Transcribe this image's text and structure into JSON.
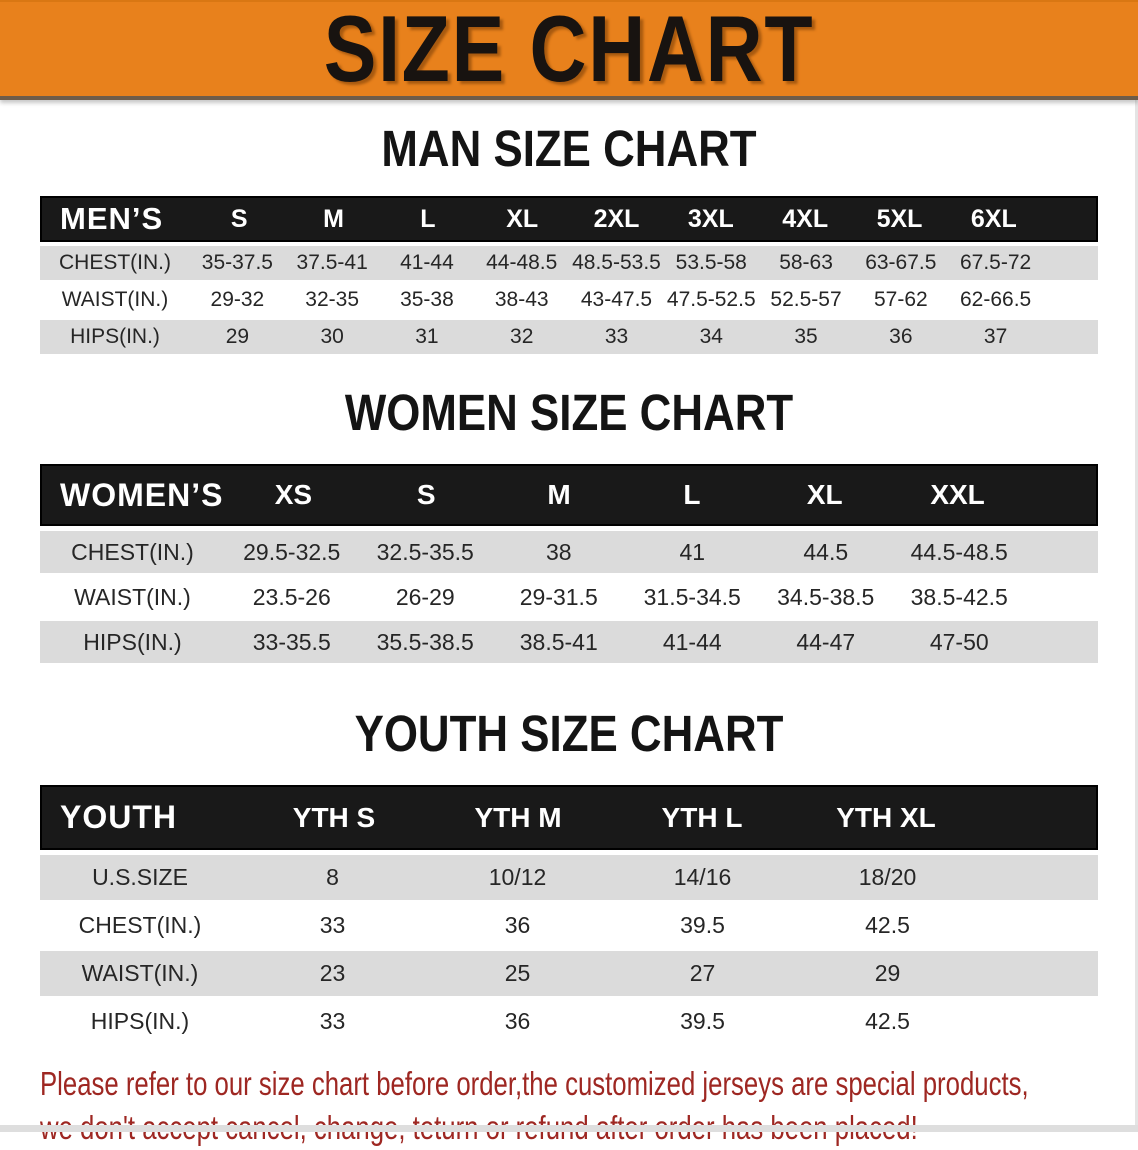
{
  "banner": {
    "title": "SIZE CHART"
  },
  "colors": {
    "banner_bg": "#E8811C",
    "header_band_bg": "#191919",
    "row_stripe_gray": "#DBDBDB",
    "footer_red": "#9E2722"
  },
  "sections": [
    {
      "heading": "MAN SIZE CHART",
      "table": {
        "name": "mens",
        "label": "MEN’S",
        "columns": [
          "S",
          "M",
          "L",
          "XL",
          "2XL",
          "3XL",
          "4XL",
          "5XL",
          "6XL"
        ],
        "rows": [
          {
            "label": "CHEST(IN.)",
            "values": [
              "35-37.5",
              "37.5-41",
              "41-44",
              "44-48.5",
              "48.5-53.5",
              "53.5-58",
              "58-63",
              "63-67.5",
              "67.5-72"
            ]
          },
          {
            "label": "WAIST(IN.)",
            "values": [
              "29-32",
              "32-35",
              "35-38",
              "38-43",
              "43-47.5",
              "47.5-52.5",
              "52.5-57",
              "57-62",
              "62-66.5"
            ]
          },
          {
            "label": "HIPS(IN.)",
            "values": [
              "29",
              "30",
              "31",
              "32",
              "33",
              "34",
              "35",
              "36",
              "37"
            ]
          }
        ]
      }
    },
    {
      "heading": "WOMEN SIZE CHART",
      "table": {
        "name": "womens",
        "label": "WOMEN’S",
        "columns": [
          "XS",
          "S",
          "M",
          "L",
          "XL",
          "XXL"
        ],
        "rows": [
          {
            "label": "CHEST(IN.)",
            "values": [
              "29.5-32.5",
              "32.5-35.5",
              "38",
              "41",
              "44.5",
              "44.5-48.5"
            ]
          },
          {
            "label": "WAIST(IN.)",
            "values": [
              "23.5-26",
              "26-29",
              "29-31.5",
              "31.5-34.5",
              "34.5-38.5",
              "38.5-42.5"
            ]
          },
          {
            "label": "HIPS(IN.)",
            "values": [
              "33-35.5",
              "35.5-38.5",
              "38.5-41",
              "41-44",
              "44-47",
              "47-50"
            ]
          }
        ]
      }
    },
    {
      "heading": "YOUTH SIZE CHART",
      "table": {
        "name": "youth",
        "label": "YOUTH",
        "columns": [
          "YTH S",
          "YTH M",
          "YTH L",
          "YTH XL"
        ],
        "rows": [
          {
            "label": "U.S.SIZE",
            "values": [
              "8",
              "10/12",
              "14/16",
              "18/20"
            ]
          },
          {
            "label": "CHEST(IN.)",
            "values": [
              "33",
              "36",
              "39.5",
              "42.5"
            ]
          },
          {
            "label": "WAIST(IN.)",
            "values": [
              "23",
              "25",
              "27",
              "29"
            ]
          },
          {
            "label": "HIPS(IN.)",
            "values": [
              "33",
              "36",
              "39.5",
              "42.5"
            ]
          }
        ]
      }
    }
  ],
  "footer": {
    "line1": "Please refer to our size chart before order,the customized jerseys are special products,",
    "line2": "we don't accept cancel, change, teturn or refund after order has been placed!"
  }
}
